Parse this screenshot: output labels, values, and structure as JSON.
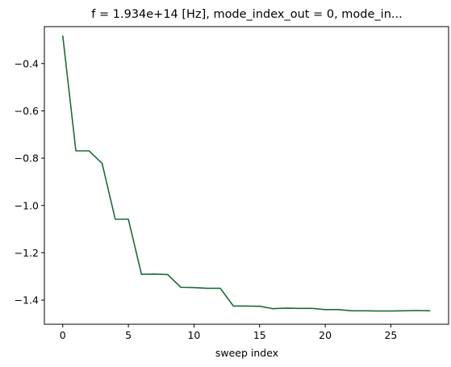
{
  "chart_data": {
    "type": "line",
    "title": "f = 1.934e+14 [Hz], mode_index_out = 0, mode_in...",
    "xlabel": "sweep index",
    "ylabel": "",
    "xlim": [
      -1.4,
      29.4
    ],
    "ylim": [
      -1.502,
      -0.244
    ],
    "xticks": [
      0,
      5,
      10,
      15,
      20,
      25
    ],
    "xtick_labels": [
      "0",
      "5",
      "10",
      "15",
      "20",
      "25"
    ],
    "yticks": [
      -0.4,
      -0.6,
      -0.8,
      -1.0,
      -1.2,
      -1.4
    ],
    "ytick_labels": [
      "−0.4",
      "−0.6",
      "−0.8",
      "−1.0",
      "−1.2",
      "−1.4"
    ],
    "grid": false,
    "line_color": "#1b6b3a",
    "series": [
      {
        "x": [
          0,
          1,
          2,
          3,
          4,
          5,
          6,
          7,
          8,
          9,
          10,
          11,
          12,
          13,
          14,
          15,
          16,
          17,
          18,
          19,
          20,
          21,
          22,
          23,
          24,
          25,
          26,
          27,
          28
        ],
        "values": [
          -0.282,
          -0.769,
          -0.769,
          -0.822,
          -1.058,
          -1.058,
          -1.291,
          -1.29,
          -1.292,
          -1.346,
          -1.347,
          -1.35,
          -1.35,
          -1.425,
          -1.425,
          -1.426,
          -1.436,
          -1.434,
          -1.435,
          -1.435,
          -1.44,
          -1.44,
          -1.445,
          -1.445,
          -1.446,
          -1.446,
          -1.445,
          -1.444,
          -1.445
        ]
      }
    ]
  }
}
